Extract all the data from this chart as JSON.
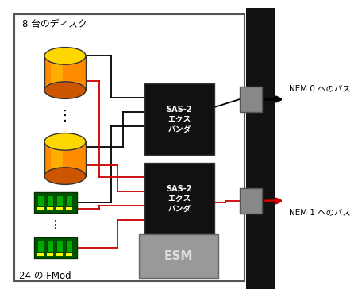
{
  "bg_color": "#ffffff",
  "title_disk": "8 台のディスク",
  "title_fmod": "24 の FMod",
  "label_nem0": "NEM 0 へのパス",
  "label_nem1": "NEM 1 へのパス",
  "label_esm": "ESM",
  "label_sas1": "SAS-2\nエクス\nパンダ",
  "label_sas2": "SAS-2\nエクス\nパンダ",
  "disk_color_body": "#FF8C00",
  "disk_color_top": "#FFD700",
  "disk_color_bot": "#CC5500",
  "disk_color_highlight": "#FFD700",
  "fmod_color_board": "#005500",
  "fmod_color_bar": "#00AA00",
  "fmod_color_dot": "#FFFF00",
  "sas_color": "#111111",
  "esm_color": "#999999",
  "nem_color": "#888888",
  "wire_black": "#000000",
  "wire_red": "#CC0000",
  "bar_color": "#111111"
}
